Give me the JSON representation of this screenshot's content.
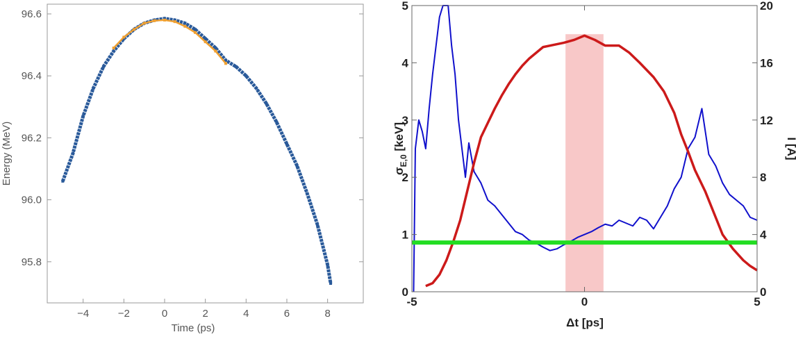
{
  "chart_data": [
    {
      "type": "scatter",
      "xlabel": "Time (ps)",
      "ylabel": "Energy (MeV)",
      "xlim": [
        -5.6,
        9.0
      ],
      "ylim": [
        95.68,
        96.64
      ],
      "xticks": [
        "-4",
        "-2",
        "0",
        "2",
        "4",
        "6",
        "8"
      ],
      "xtick_values": [
        -4,
        -2,
        0,
        2,
        4,
        6,
        8
      ],
      "yticks": [
        "95.8",
        "96.0",
        "96.2",
        "96.4",
        "96.6"
      ],
      "ytick_values": [
        95.8,
        96.0,
        96.2,
        96.4,
        96.6
      ],
      "grid": false,
      "series": [
        {
          "color": "#2a5a9a",
          "x": [
            -5,
            -4.5,
            -4,
            -3.5,
            -3,
            -2.5,
            -2,
            -1.5,
            -1,
            -0.5,
            0,
            0.5,
            1,
            1.5,
            2,
            2.5,
            3,
            3.5,
            4,
            4.5,
            5,
            5.5,
            6,
            6.5,
            7,
            7.5,
            8,
            8.15
          ],
          "y": [
            96.06,
            96.15,
            96.27,
            96.36,
            96.43,
            96.48,
            96.52,
            96.55,
            96.57,
            96.58,
            96.585,
            96.58,
            96.57,
            96.55,
            96.52,
            96.49,
            96.45,
            96.43,
            96.4,
            96.36,
            96.31,
            96.25,
            96.18,
            96.11,
            96.02,
            95.92,
            95.79,
            95.73
          ]
        },
        {
          "color": "#f0a030",
          "x": [
            -2.5,
            -2,
            -1.5,
            -1,
            -0.5,
            0,
            0.5,
            1,
            1.5,
            2,
            2.5,
            3
          ],
          "y": [
            96.49,
            96.525,
            96.55,
            96.57,
            96.578,
            96.58,
            96.575,
            96.56,
            96.54,
            96.51,
            96.48,
            96.44
          ]
        }
      ]
    },
    {
      "type": "line",
      "xlabel": "Δt [ps]",
      "ylabel_main": "σ",
      "ylabel_sub": "E,0",
      "ylabel_unit": " [keV]",
      "ylabel_right": "I [A]",
      "xlim": [
        -5,
        5
      ],
      "ylim": [
        0,
        5
      ],
      "ylim_right": [
        0,
        20
      ],
      "xticks": [
        "-5",
        "0",
        "5"
      ],
      "xtick_values": [
        -5,
        0,
        5
      ],
      "yticks": [
        "0",
        "1",
        "2",
        "3",
        "4",
        "5"
      ],
      "ytick_values": [
        0,
        1,
        2,
        3,
        4,
        5
      ],
      "yticks_right": [
        "0",
        "4",
        "8",
        "12",
        "16",
        "20"
      ],
      "ytick_right_values": [
        0,
        4,
        8,
        12,
        16,
        20
      ],
      "grid": false,
      "band": {
        "x": [
          -0.55,
          0.55
        ],
        "y_top": 4.5,
        "color": "#f8c8c8"
      },
      "hline": {
        "y": 0.86,
        "color": "#22dd22"
      },
      "series": [
        {
          "axis": "left",
          "color": "#1010cc",
          "x": [
            -4.95,
            -4.9,
            -4.8,
            -4.7,
            -4.6,
            -4.5,
            -4.4,
            -4.3,
            -4.2,
            -4.1,
            -3.95,
            -3.85,
            -3.75,
            -3.65,
            -3.55,
            -3.45,
            -3.35,
            -3.2,
            -3.0,
            -2.8,
            -2.6,
            -2.4,
            -2.2,
            -2.0,
            -1.8,
            -1.6,
            -1.4,
            -1.2,
            -1.0,
            -0.8,
            -0.6,
            -0.4,
            -0.2,
            0,
            0.2,
            0.4,
            0.6,
            0.8,
            1.0,
            1.2,
            1.4,
            1.6,
            1.8,
            2.0,
            2.2,
            2.4,
            2.6,
            2.8,
            3.0,
            3.2,
            3.4,
            3.6,
            3.8,
            4.0,
            4.2,
            4.4,
            4.6,
            4.8,
            5.0
          ],
          "y": [
            0,
            2.5,
            3.0,
            2.8,
            2.5,
            3.2,
            3.8,
            4.3,
            4.8,
            5.0,
            5.0,
            4.3,
            3.8,
            3.0,
            2.5,
            2.0,
            2.6,
            2.1,
            1.9,
            1.6,
            1.5,
            1.35,
            1.2,
            1.05,
            1.0,
            0.9,
            0.85,
            0.78,
            0.72,
            0.75,
            0.82,
            0.88,
            0.95,
            1.0,
            1.05,
            1.12,
            1.18,
            1.15,
            1.25,
            1.2,
            1.15,
            1.3,
            1.25,
            1.1,
            1.3,
            1.5,
            1.8,
            2.0,
            2.5,
            2.7,
            3.2,
            2.4,
            2.2,
            1.9,
            1.7,
            1.6,
            1.5,
            1.3,
            1.25
          ]
        },
        {
          "axis": "right",
          "color": "#cc1a1a",
          "x": [
            -4.6,
            -4.4,
            -4.2,
            -4.0,
            -3.8,
            -3.6,
            -3.4,
            -3.2,
            -3.0,
            -2.8,
            -2.6,
            -2.4,
            -2.2,
            -2.0,
            -1.8,
            -1.6,
            -1.4,
            -1.2,
            -1.0,
            -0.6,
            -0.3,
            0,
            0.3,
            0.6,
            1.0,
            1.3,
            1.6,
            2.0,
            2.3,
            2.6,
            2.8,
            3.0,
            3.2,
            3.5,
            3.8,
            4.0,
            4.3,
            4.6,
            4.8,
            5.0
          ],
          "y": [
            0.4,
            0.6,
            1.2,
            2.2,
            3.5,
            5.0,
            7.0,
            9.0,
            10.8,
            11.8,
            12.8,
            13.7,
            14.5,
            15.2,
            15.8,
            16.3,
            16.7,
            17.1,
            17.2,
            17.4,
            17.6,
            17.9,
            17.6,
            17.2,
            17.2,
            16.7,
            16.0,
            15.0,
            14.0,
            12.5,
            11.0,
            9.8,
            8.5,
            7.0,
            5.2,
            4.0,
            3.0,
            2.2,
            1.8,
            1.5
          ]
        }
      ]
    }
  ]
}
